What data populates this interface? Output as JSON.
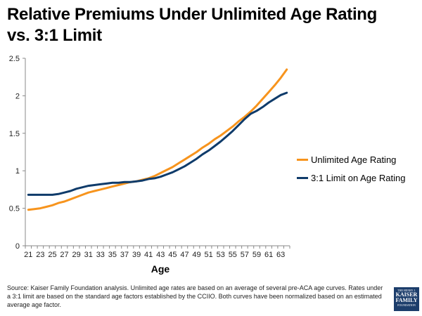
{
  "title": "Relative Premiums Under Unlimited Age Rating vs. 3:1 Limit",
  "source_note": "Source: Kaiser Family Foundation analysis. Unlimited age rates are based on an average of several pre-ACA age curves. Rates under a 3:1 limit are based on the standard age factors established by the CCIIO. Both curves have been normalized based on an estimated average age factor.",
  "logo": {
    "line1": "THE HENRY J.",
    "line2a": "KAISER",
    "line2b": "FAMILY",
    "line3": "FOUNDATION"
  },
  "colors": {
    "unlimited": "#F7941D",
    "limit": "#0F3B6A",
    "axis": "#888888"
  },
  "chart_data": {
    "type": "line",
    "xlabel": "Age",
    "ylabel": "",
    "ylim": [
      0,
      2.5
    ],
    "yticks": [
      0,
      0.5,
      1,
      1.5,
      2,
      2.5
    ],
    "ytick_labels": [
      "0",
      "0.5",
      "1",
      "1.5",
      "2",
      "2.5"
    ],
    "xticks": [
      "21",
      "23",
      "25",
      "27",
      "29",
      "31",
      "33",
      "35",
      "37",
      "39",
      "41",
      "43",
      "45",
      "47",
      "49",
      "51",
      "53",
      "55",
      "57",
      "59",
      "61",
      "63"
    ],
    "legend_position": "right",
    "grid": false,
    "x": [
      21,
      22,
      23,
      24,
      25,
      26,
      27,
      28,
      29,
      30,
      31,
      32,
      33,
      34,
      35,
      36,
      37,
      38,
      39,
      40,
      41,
      42,
      43,
      44,
      45,
      46,
      47,
      48,
      49,
      50,
      51,
      52,
      53,
      54,
      55,
      56,
      57,
      58,
      59,
      60,
      61,
      62,
      63,
      64
    ],
    "series": [
      {
        "name": "Unlimited Age Rating",
        "color": "#F7941D",
        "values": [
          0.48,
          0.49,
          0.5,
          0.52,
          0.54,
          0.57,
          0.59,
          0.62,
          0.65,
          0.68,
          0.71,
          0.73,
          0.75,
          0.77,
          0.79,
          0.81,
          0.83,
          0.85,
          0.86,
          0.88,
          0.9,
          0.93,
          0.97,
          1.01,
          1.05,
          1.1,
          1.15,
          1.2,
          1.25,
          1.31,
          1.36,
          1.42,
          1.47,
          1.53,
          1.59,
          1.66,
          1.72,
          1.79,
          1.87,
          1.96,
          2.05,
          2.14,
          2.24,
          2.35
        ]
      },
      {
        "name": "3:1 Limit on Age Rating",
        "color": "#0F3B6A",
        "values": [
          0.68,
          0.68,
          0.68,
          0.68,
          0.68,
          0.69,
          0.71,
          0.73,
          0.76,
          0.78,
          0.8,
          0.81,
          0.82,
          0.83,
          0.84,
          0.84,
          0.85,
          0.85,
          0.86,
          0.87,
          0.89,
          0.9,
          0.92,
          0.95,
          0.98,
          1.02,
          1.06,
          1.11,
          1.16,
          1.22,
          1.27,
          1.33,
          1.39,
          1.46,
          1.53,
          1.61,
          1.69,
          1.76,
          1.8,
          1.85,
          1.91,
          1.96,
          2.01,
          2.04
        ]
      }
    ]
  }
}
